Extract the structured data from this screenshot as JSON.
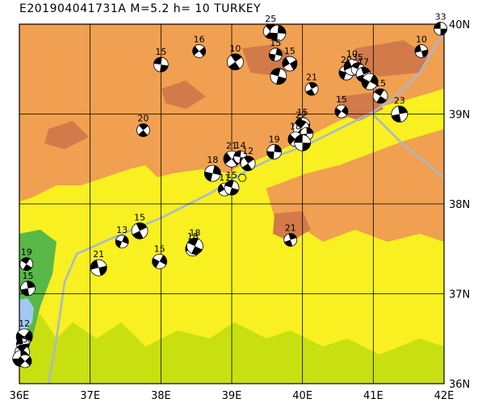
{
  "title": "E201904041731A  M=5.2  h= 10  TURKEY",
  "region": {
    "lon_min": 36,
    "lon_max": 42,
    "lat_min": 36,
    "lat_max": 40
  },
  "lon_labels": [
    "36E",
    "37E",
    "38E",
    "39E",
    "40E",
    "41E",
    "42E"
  ],
  "lat_labels": [
    "36N",
    "37N",
    "38N",
    "39N",
    "40N"
  ],
  "colors": {
    "high_land": "#f0a050",
    "high_land_dark": "#d27a4a",
    "mid_land": "#f8f020",
    "low_land": "#c8e010",
    "lowland_green": "#58b848",
    "sea": "#a0c8f0",
    "road": "#a8b8d0",
    "grid": "#000000"
  },
  "mechanisms": [
    {
      "lon": 41.95,
      "lat": 39.95,
      "depth": "33"
    },
    {
      "lon": 39.55,
      "lat": 39.92,
      "depth": "25"
    },
    {
      "lon": 39.65,
      "lat": 39.9,
      "depth": ""
    },
    {
      "lon": 38.54,
      "lat": 39.7,
      "depth": "16"
    },
    {
      "lon": 38.0,
      "lat": 39.55,
      "depth": "15"
    },
    {
      "lon": 39.05,
      "lat": 39.58,
      "depth": "10"
    },
    {
      "lon": 39.62,
      "lat": 39.66,
      "depth": "15"
    },
    {
      "lon": 39.82,
      "lat": 39.56,
      "depth": "15"
    },
    {
      "lon": 39.66,
      "lat": 39.42,
      "depth": ""
    },
    {
      "lon": 40.13,
      "lat": 39.28,
      "depth": "21"
    },
    {
      "lon": 40.62,
      "lat": 39.46,
      "depth": "20"
    },
    {
      "lon": 40.7,
      "lat": 39.52,
      "depth": "10"
    },
    {
      "lon": 40.78,
      "lat": 39.5,
      "depth": "35"
    },
    {
      "lon": 40.86,
      "lat": 39.44,
      "depth": "17"
    },
    {
      "lon": 40.95,
      "lat": 39.36,
      "depth": ""
    },
    {
      "lon": 41.68,
      "lat": 39.7,
      "depth": "10"
    },
    {
      "lon": 41.1,
      "lat": 39.2,
      "depth": "15"
    },
    {
      "lon": 41.37,
      "lat": 39.0,
      "depth": "23"
    },
    {
      "lon": 40.55,
      "lat": 39.03,
      "depth": "15"
    },
    {
      "lon": 40.0,
      "lat": 38.88,
      "depth": "15"
    },
    {
      "lon": 39.98,
      "lat": 38.84,
      "depth": "22"
    },
    {
      "lon": 40.06,
      "lat": 38.78,
      "depth": ""
    },
    {
      "lon": 39.9,
      "lat": 38.72,
      "depth": "18"
    },
    {
      "lon": 40.0,
      "lat": 38.68,
      "depth": ""
    },
    {
      "lon": 37.75,
      "lat": 38.82,
      "depth": "20"
    },
    {
      "lon": 39.6,
      "lat": 38.58,
      "depth": "19"
    },
    {
      "lon": 39.0,
      "lat": 38.5,
      "depth": "21"
    },
    {
      "lon": 39.12,
      "lat": 38.52,
      "depth": "14"
    },
    {
      "lon": 39.23,
      "lat": 38.45,
      "depth": "12"
    },
    {
      "lon": 38.73,
      "lat": 38.34,
      "depth": "18"
    },
    {
      "lon": 38.9,
      "lat": 38.16,
      "depth": "11"
    },
    {
      "lon": 39.0,
      "lat": 38.18,
      "depth": "15"
    },
    {
      "lon": 37.7,
      "lat": 37.7,
      "depth": "15"
    },
    {
      "lon": 37.45,
      "lat": 37.58,
      "depth": "13"
    },
    {
      "lon": 38.45,
      "lat": 37.5,
      "depth": "18"
    },
    {
      "lon": 38.48,
      "lat": 37.53,
      "depth": "18"
    },
    {
      "lon": 39.83,
      "lat": 37.6,
      "depth": "21"
    },
    {
      "lon": 37.98,
      "lat": 37.36,
      "depth": "15"
    },
    {
      "lon": 37.12,
      "lat": 37.29,
      "depth": "21"
    },
    {
      "lon": 36.1,
      "lat": 37.33,
      "depth": "19"
    },
    {
      "lon": 36.12,
      "lat": 37.06,
      "depth": "15"
    },
    {
      "lon": 36.07,
      "lat": 36.52,
      "depth": "12"
    },
    {
      "lon": 36.05,
      "lat": 36.44,
      "depth": ""
    },
    {
      "lon": 36.04,
      "lat": 36.35,
      "depth": "15"
    },
    {
      "lon": 36.02,
      "lat": 36.28,
      "depth": ""
    },
    {
      "lon": 36.08,
      "lat": 36.25,
      "depth": ""
    }
  ],
  "event_marker": {
    "lon": 39.15,
    "lat": 38.29,
    "color": "#ffff00"
  }
}
